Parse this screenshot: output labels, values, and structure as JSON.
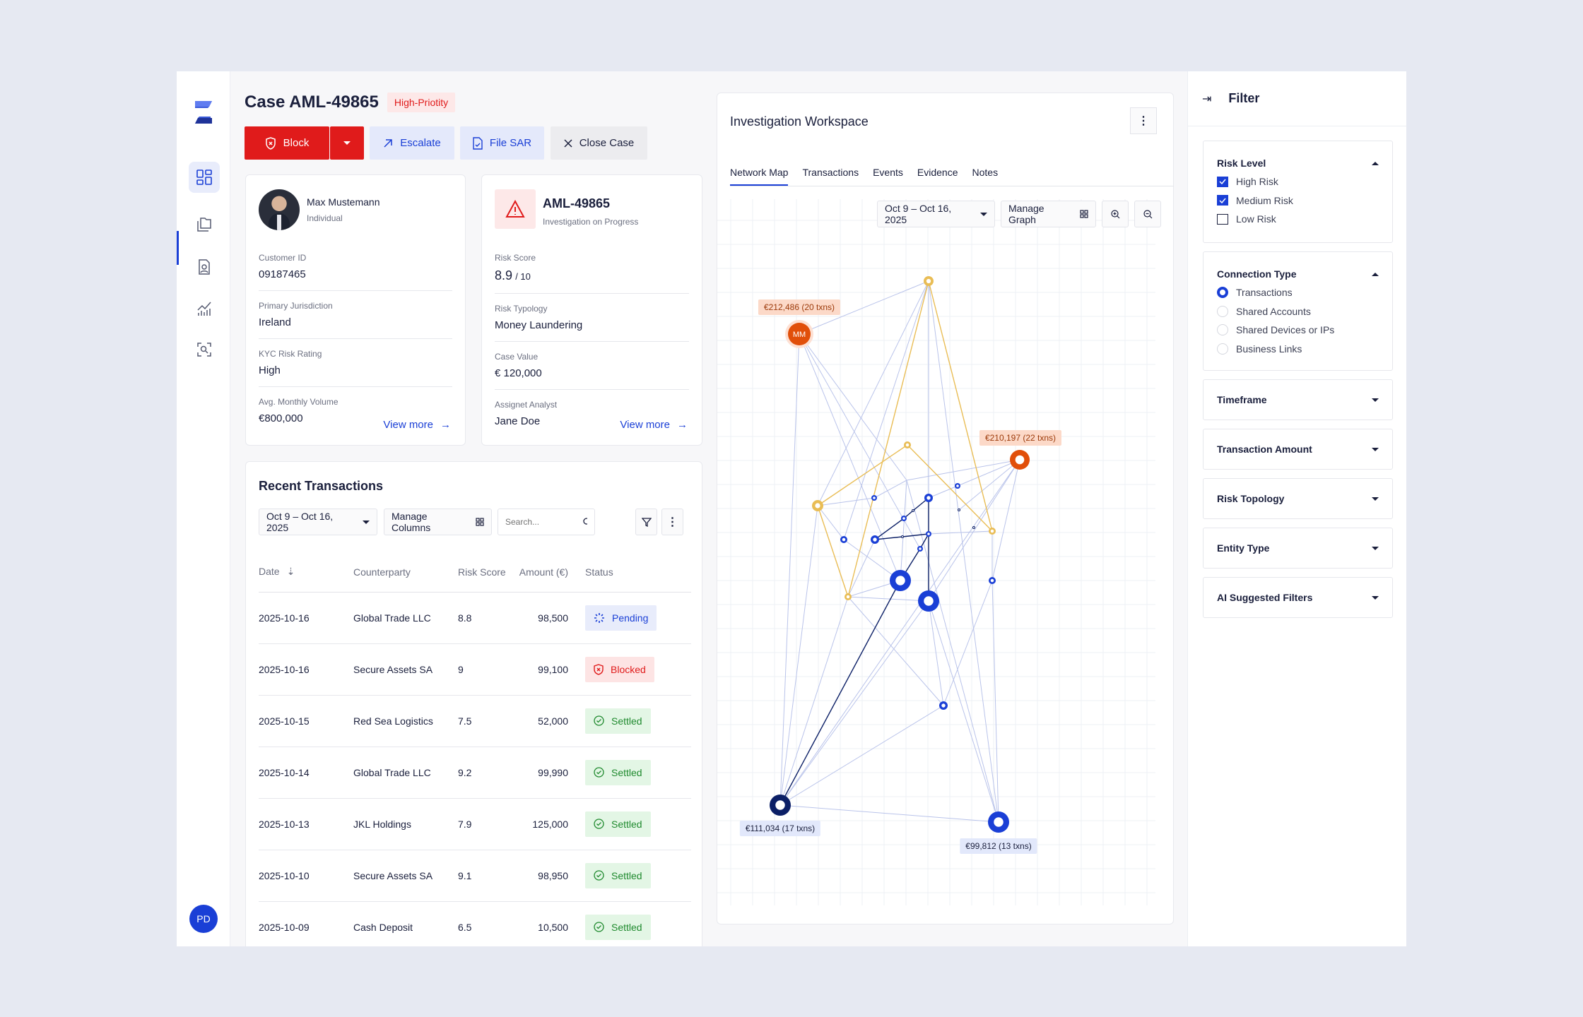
{
  "case": {
    "title": "Case AML-49865",
    "priority": "High-Priotity"
  },
  "actions": {
    "block": "Block",
    "escalate": "Escalate",
    "file_sar": "File SAR",
    "close_case": "Close Case"
  },
  "customer": {
    "name": "Max Mustemann",
    "type": "Individual",
    "fields": [
      {
        "label": "Customer ID",
        "value": "09187465"
      },
      {
        "label": "Primary Jurisdiction",
        "value": "Ireland"
      },
      {
        "label": "KYC Risk Rating",
        "value": "High"
      },
      {
        "label": "Avg. Monthly Volume",
        "value": "€800,000"
      }
    ],
    "view_more": "View more"
  },
  "case_card": {
    "id": "AML-49865",
    "status": "Investigation on Progress",
    "risk_label": "Risk Score",
    "risk_value": "8.9",
    "risk_max": "/ 10",
    "fields": [
      {
        "label": "Risk Typology",
        "value": "Money Laundering"
      },
      {
        "label": "Case Value",
        "value": "€ 120,000"
      },
      {
        "label": "Assignet Analyst",
        "value": "Jane Doe"
      }
    ],
    "view_more": "View more"
  },
  "transactions": {
    "title": "Recent Transactions",
    "date_range": "Oct 9 – Oct 16, 2025",
    "manage_columns": "Manage Columns",
    "search_placeholder": "Search...",
    "columns": [
      "Date",
      "Counterparty",
      "Risk Score",
      "Amount (€)",
      "Status"
    ],
    "rows": [
      [
        "2025-10-16",
        "Global Trade LLC",
        "8.8",
        "98,500",
        "Pending"
      ],
      [
        "2025-10-16",
        "Secure Assets SA",
        "9",
        "99,100",
        "Blocked"
      ],
      [
        "2025-10-15",
        "Red Sea Logistics",
        "7.5",
        "52,000",
        "Settled"
      ],
      [
        "2025-10-14",
        "Global Trade LLC",
        "9.2",
        "99,990",
        "Settled"
      ],
      [
        "2025-10-13",
        "JKL Holdings",
        "7.9",
        "125,000",
        "Settled"
      ],
      [
        "2025-10-10",
        "Secure Assets SA",
        "9.1",
        "98,950",
        "Settled"
      ],
      [
        "2025-10-09",
        "Cash Deposit",
        "6.5",
        "10,500",
        "Settled"
      ]
    ]
  },
  "workspace": {
    "title": "Investigation Workspace",
    "tabs": [
      "Network Map",
      "Transactions",
      "Events",
      "Evidence",
      "Notes"
    ],
    "active_tab": "Network Map",
    "date_range": "Oct 9 – Oct 16, 2025",
    "manage_graph": "Manage Graph",
    "node_labels": {
      "mm_initials": "MM",
      "mm": "€212,486 (20 txns)",
      "o2": "€210,197 (22 txns)",
      "navy": "€111,034 (17 txns)",
      "b3": "€99,812 (13 txns)"
    }
  },
  "filter": {
    "title": "Filter",
    "risk_level": {
      "title": "Risk Level",
      "options": [
        {
          "label": "High Risk",
          "checked": true
        },
        {
          "label": "Medium Risk",
          "checked": true
        },
        {
          "label": "Low Risk",
          "checked": false
        }
      ]
    },
    "connection_type": {
      "title": "Connection Type",
      "options": [
        {
          "label": "Transactions",
          "selected": true
        },
        {
          "label": "Shared Accounts",
          "selected": false
        },
        {
          "label": "Shared Devices or IPs",
          "selected": false
        },
        {
          "label": "Business Links",
          "selected": false
        }
      ]
    },
    "collapsed": [
      "Timeframe",
      "Transaction Amount",
      "Risk Topology",
      "Entity Type",
      "AI Suggested Filters"
    ]
  },
  "user": {
    "initials": "PD"
  },
  "colors": {
    "accent": "#1a3fd6",
    "danger": "#e01b1b",
    "orange": "#e14f0a",
    "yellow": "#e9bd55",
    "navy": "#0b1f66"
  }
}
